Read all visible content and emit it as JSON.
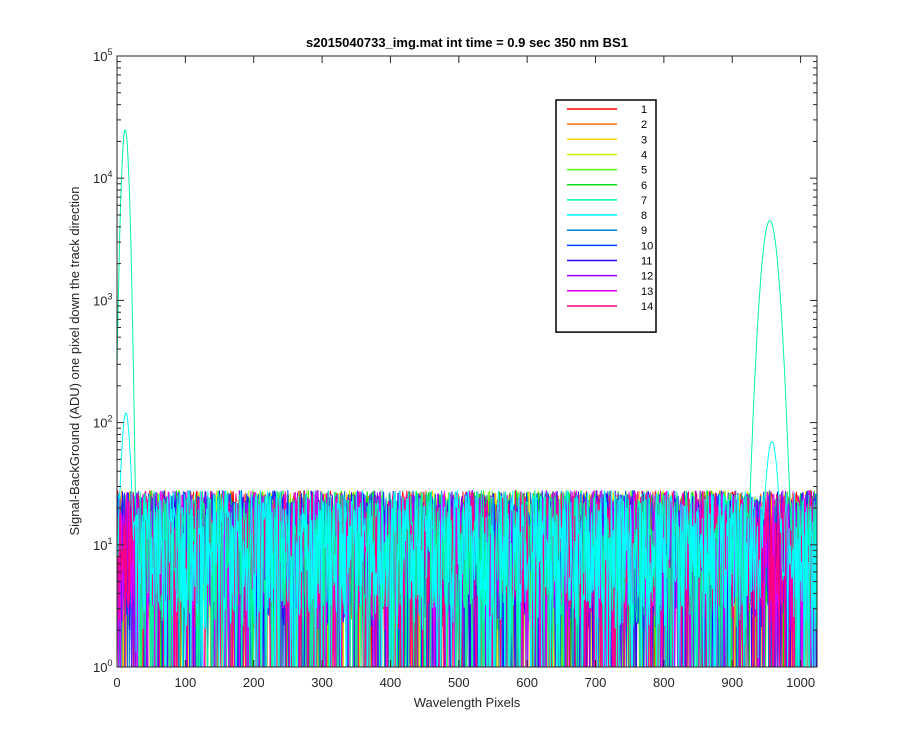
{
  "chart_data": {
    "type": "line",
    "title": "s2015040733_img.mat int time = 0.9 sec  350 nm BS1",
    "xlabel": "Wavelength Pixels",
    "ylabel": "Signal-BackGround (ADU) one pixel down the track direction",
    "xlim": [
      0,
      1024
    ],
    "ylim": [
      1,
      100000
    ],
    "yscale": "log",
    "grid": false,
    "legend_position": "top-right",
    "x_ticks": [
      0,
      100,
      200,
      300,
      400,
      500,
      600,
      700,
      800,
      900,
      1000
    ],
    "y_ticks": [
      {
        "base": "10",
        "exp": "0",
        "value": 1
      },
      {
        "base": "10",
        "exp": "1",
        "value": 10
      },
      {
        "base": "10",
        "exp": "2",
        "value": 100
      },
      {
        "base": "10",
        "exp": "3",
        "value": 1000
      },
      {
        "base": "10",
        "exp": "4",
        "value": 10000
      },
      {
        "base": "10",
        "exp": "5",
        "value": 100000
      }
    ],
    "series": [
      {
        "name": "1",
        "color": "#ff0000"
      },
      {
        "name": "2",
        "color": "#ff6e00"
      },
      {
        "name": "3",
        "color": "#ffd500"
      },
      {
        "name": "4",
        "color": "#c3f400"
      },
      {
        "name": "5",
        "color": "#59f500"
      },
      {
        "name": "6",
        "color": "#00e01b"
      },
      {
        "name": "7",
        "color": "#00f5a0",
        "peaks": [
          {
            "x": 12,
            "y": 25000,
            "width": 4
          },
          {
            "x": 955,
            "y": 4500,
            "width": 9
          }
        ]
      },
      {
        "name": "8",
        "color": "#00ffff",
        "peaks": [
          {
            "x": 13,
            "y": 120,
            "width": 5
          },
          {
            "x": 958,
            "y": 70,
            "width": 7
          }
        ]
      },
      {
        "name": "9",
        "color": "#0080d0"
      },
      {
        "name": "10",
        "color": "#0040ff"
      },
      {
        "name": "11",
        "color": "#3000ff"
      },
      {
        "name": "12",
        "color": "#9000ff"
      },
      {
        "name": "13",
        "color": "#e000ff"
      },
      {
        "name": "14",
        "color": "#ff0080"
      }
    ],
    "noise_floor": {
      "typical_range": [
        2,
        30
      ],
      "x_range": [
        0,
        1024
      ]
    }
  }
}
